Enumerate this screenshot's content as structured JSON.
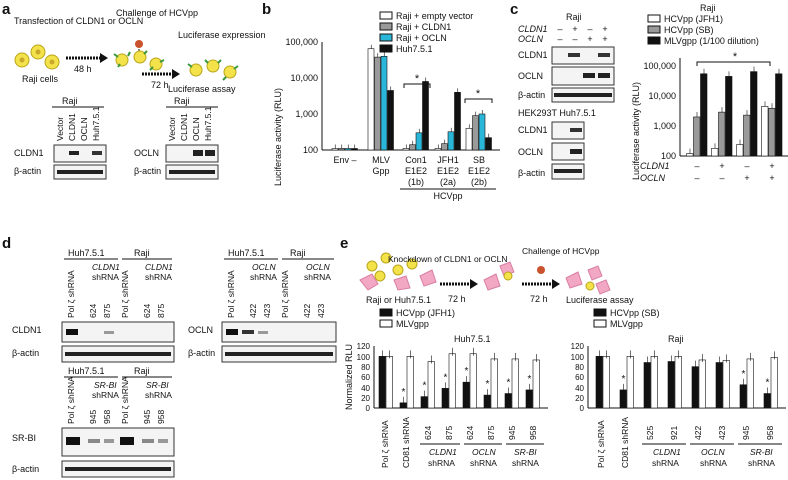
{
  "panel_letters": [
    "a",
    "b",
    "c",
    "d",
    "e"
  ],
  "colors": {
    "black": "#111111",
    "white": "#ffffff",
    "gray": "#9a9a9a",
    "cyan": "#29b6d9",
    "cell_yellow": "#f3e24a",
    "virus_red": "#c8532d",
    "spike_green": "#3a9a3a",
    "pink_cell": "#f2a7c3"
  },
  "panel_a": {
    "step1": "Transfection of CLDN1 or OCLN",
    "raji_cells": "Raji cells",
    "time1": "48 h",
    "step2": "Challenge of HCVpp",
    "time2": "72 h",
    "step3": "Luciferase expression",
    "step4": "Luciferase assay",
    "blot1": {
      "header": "Raji",
      "lanes": [
        "Vector",
        "CLDN1",
        "OCLN",
        "Huh7.5.1"
      ],
      "rows": [
        "CLDN1",
        "β-actin"
      ]
    },
    "blot2": {
      "header": "Raji",
      "lanes": [
        "Vector",
        "CLDN1",
        "OCLN",
        "Huh7.5.1"
      ],
      "rows": [
        "OCLN",
        "β-actin"
      ]
    }
  },
  "panel_b": {
    "ylabel": "Luciferase activity (RLU)",
    "yticks": [
      "100",
      "1,000",
      "10,000",
      "100,000"
    ],
    "legend": [
      "Raji + empty vector",
      "Raji + CLDN1",
      "Raji + OCLN",
      "Huh7.5.1"
    ],
    "groups": [
      [
        "Env –"
      ],
      [
        "MLV",
        "Gpp"
      ],
      [
        "Con1",
        "E1E2",
        "(1b)"
      ],
      [
        "JFH1",
        "E1E2",
        "(2a)"
      ],
      [
        "SB",
        "E1E2",
        "(2b)"
      ]
    ],
    "bracket_label": "HCVpp",
    "star": "*"
  },
  "panel_c": {
    "raji": "Raji",
    "row_labels": [
      "CLDN1",
      "OCLN"
    ],
    "signs": [
      [
        "–",
        "+",
        "–",
        "+"
      ],
      [
        "–",
        "–",
        "+",
        "+"
      ]
    ],
    "blot_rows": [
      "CLDN1",
      "OCLN",
      "β-actin"
    ],
    "hek": "HEK293T Huh7.5.1",
    "hek_rows": [
      "CLDN1",
      "OCLN",
      "β-actin"
    ],
    "chart_title": "Raji",
    "legend": [
      "HCVpp (JFH1)",
      "HCVpp (SB)",
      "MLVgpp (1/100 dilution)"
    ],
    "ylabel": "Luciferase activity (RLU)",
    "yticks": [
      "100",
      "1,000",
      "10,000",
      "100,000"
    ],
    "star": "*"
  },
  "panel_d": {
    "blot1": {
      "headers": [
        "Huh7.5.1",
        "Raji"
      ],
      "pol": "Pol ζ shRNA",
      "gene": "CLDN1",
      "sh": "shRNA",
      "nums": [
        "624",
        "875"
      ],
      "rows": [
        "CLDN1",
        "β-actin"
      ]
    },
    "blot2": {
      "headers": [
        "Huh7.5.1",
        "Raji"
      ],
      "pol": "Pol ζ shRNA",
      "gene": "OCLN",
      "sh": "shRNA",
      "nums": [
        "422",
        "423"
      ],
      "rows": [
        "OCLN",
        "β-actin"
      ]
    },
    "blot3": {
      "headers": [
        "Huh7.5.1",
        "Raji"
      ],
      "pol": "Pol ζ shRNA",
      "gene": "SR-BI",
      "sh": "shRNA",
      "nums": [
        "945",
        "958"
      ],
      "rows": [
        "SR-BI",
        "β-actin"
      ]
    }
  },
  "panel_e": {
    "step1": "Knockdown of CLDN1 or OCLN",
    "step2": "Challenge of HCVpp",
    "cells": "Raji or Huh7.5.1",
    "time1": "72 h",
    "time2": "72 h",
    "step3": "Luciferase assay",
    "legend_left": [
      "HCVpp (JFH1)",
      "MLVgpp"
    ],
    "legend_right": [
      "HCVpp (SB)",
      "MLVgpp"
    ],
    "title_left": "Huh7.5.1",
    "title_right": "Raji",
    "ylabel": "Normalized RLU",
    "yticks": [
      "0",
      "20",
      "40",
      "60",
      "80",
      "100",
      "120"
    ],
    "star": "*",
    "xlab_common": [
      "Pol ζ shRNA",
      "CD81 shRNA"
    ],
    "groups": [
      {
        "gene": "CLDN1",
        "nums": [
          "624",
          "875"
        ]
      },
      {
        "gene": "OCLN",
        "nums": [
          "624",
          "875"
        ]
      },
      {
        "gene": "SR-BI",
        "nums": [
          "945",
          "958"
        ]
      }
    ],
    "groups_right": [
      {
        "gene": "CLDN1",
        "nums": [
          "525",
          "921"
        ]
      },
      {
        "gene": "OCLN",
        "nums": [
          "422",
          "423"
        ]
      },
      {
        "gene": "SR-BI",
        "nums": [
          "945",
          "958"
        ]
      }
    ],
    "shRNA": "shRNA"
  },
  "chart_data": [
    {
      "type": "bar",
      "panel": "b",
      "ylabel": "Luciferase activity (RLU)",
      "log_scale": true,
      "ylim": [
        100,
        100000
      ],
      "categories": [
        "Env –",
        "MLV Gpp",
        "Con1 E1E2 (1b)",
        "JFH1 E1E2 (2a)",
        "SB E1E2 (2b)"
      ],
      "series": [
        {
          "name": "Raji + empty vector",
          "values": [
            110,
            65000,
            110,
            110,
            400
          ]
        },
        {
          "name": "Raji + CLDN1",
          "values": [
            110,
            38000,
            140,
            150,
            900
          ]
        },
        {
          "name": "Raji + OCLN",
          "values": [
            110,
            40000,
            300,
            320,
            1000
          ]
        },
        {
          "name": "Huh7.5.1",
          "values": [
            110,
            4500,
            8000,
            4000,
            220
          ]
        }
      ]
    },
    {
      "type": "bar",
      "panel": "c",
      "title": "Raji",
      "ylabel": "Luciferase activity (RLU)",
      "log_scale": true,
      "ylim": [
        100,
        100000
      ],
      "categories": [
        "– –",
        "+ –",
        "– +",
        "+ +"
      ],
      "series": [
        {
          "name": "HCVpp (JFH1)",
          "values": [
            120,
            180,
            240,
            4500
          ]
        },
        {
          "name": "HCVpp (SB)",
          "values": [
            2000,
            2900,
            2300,
            3900
          ]
        },
        {
          "name": "MLVgpp (1/100 dilution)",
          "values": [
            55000,
            45000,
            65000,
            55000
          ]
        }
      ]
    },
    {
      "type": "bar",
      "panel": "e-left",
      "title": "Huh7.5.1",
      "ylabel": "Normalized RLU",
      "ylim": [
        0,
        120
      ],
      "categories": [
        "Pol ζ shRNA",
        "CD81 shRNA",
        "CLDN1 624",
        "CLDN1 875",
        "OCLN 624",
        "OCLN 875",
        "SR-BI 945",
        "SR-BI 958"
      ],
      "series": [
        {
          "name": "HCVpp (JFH1)",
          "values": [
            100,
            10,
            22,
            38,
            50,
            25,
            28,
            35
          ]
        },
        {
          "name": "MLVgpp",
          "values": [
            100,
            100,
            90,
            105,
            105,
            95,
            95,
            93
          ]
        }
      ]
    },
    {
      "type": "bar",
      "panel": "e-right",
      "title": "Raji",
      "ylabel": "Normalized RLU",
      "ylim": [
        0,
        120
      ],
      "categories": [
        "Pol ζ shRNA",
        "CD81 shRNA",
        "CLDN1 525",
        "CLDN1 921",
        "OCLN 422",
        "OCLN 423",
        "SR-BI 945",
        "SR-BI 958"
      ],
      "series": [
        {
          "name": "HCVpp (SB)",
          "values": [
            100,
            35,
            88,
            90,
            80,
            88,
            45,
            28
          ]
        },
        {
          "name": "MLVgpp",
          "values": [
            100,
            100,
            100,
            100,
            93,
            92,
            95,
            98
          ]
        }
      ]
    }
  ]
}
